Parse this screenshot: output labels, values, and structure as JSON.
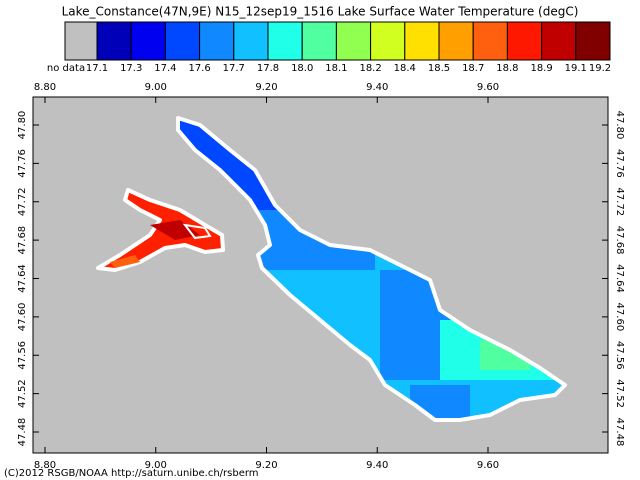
{
  "title": "Lake_Constance(47N,9E) N15_12sep19_1516 Lake Surface Water Temperature (degC)",
  "colorbar": {
    "no_data_label": "no data",
    "no_data_color": "#c0c0c0",
    "colors": [
      "#0000b8",
      "#0000f0",
      "#0048ff",
      "#1088ff",
      "#10c0ff",
      "#20ffe8",
      "#50ffa0",
      "#90ff50",
      "#d0ff20",
      "#ffe000",
      "#ffa000",
      "#ff6010",
      "#ff1800",
      "#c00000",
      "#800000"
    ],
    "labels": [
      "17.1",
      "17.3",
      "17.4",
      "17.6",
      "17.7",
      "17.8",
      "18.0",
      "18.1",
      "18.2",
      "18.4",
      "18.5",
      "18.7",
      "18.8",
      "18.9",
      "19.1",
      "19.2"
    ]
  },
  "map": {
    "xticks": [
      {
        "value": 8.8,
        "label": "8.80"
      },
      {
        "value": 9.0,
        "label": "9.00"
      },
      {
        "value": 9.2,
        "label": "9.20"
      },
      {
        "value": 9.4,
        "label": "9.40"
      },
      {
        "value": 9.6,
        "label": "9.60"
      }
    ],
    "yticks": [
      {
        "value": 47.8,
        "label": "47.80"
      },
      {
        "value": 47.76,
        "label": "47.76"
      },
      {
        "value": 47.72,
        "label": "47.72"
      },
      {
        "value": 47.68,
        "label": "47.68"
      },
      {
        "value": 47.64,
        "label": "47.64"
      },
      {
        "value": 47.6,
        "label": "47.60"
      },
      {
        "value": 47.56,
        "label": "47.56"
      },
      {
        "value": 47.52,
        "label": "47.52"
      },
      {
        "value": 47.48,
        "label": "47.48"
      }
    ]
  },
  "footer": "(C)2012 RSGB/NOAA http://saturn.unibe.ch/rsberm"
}
